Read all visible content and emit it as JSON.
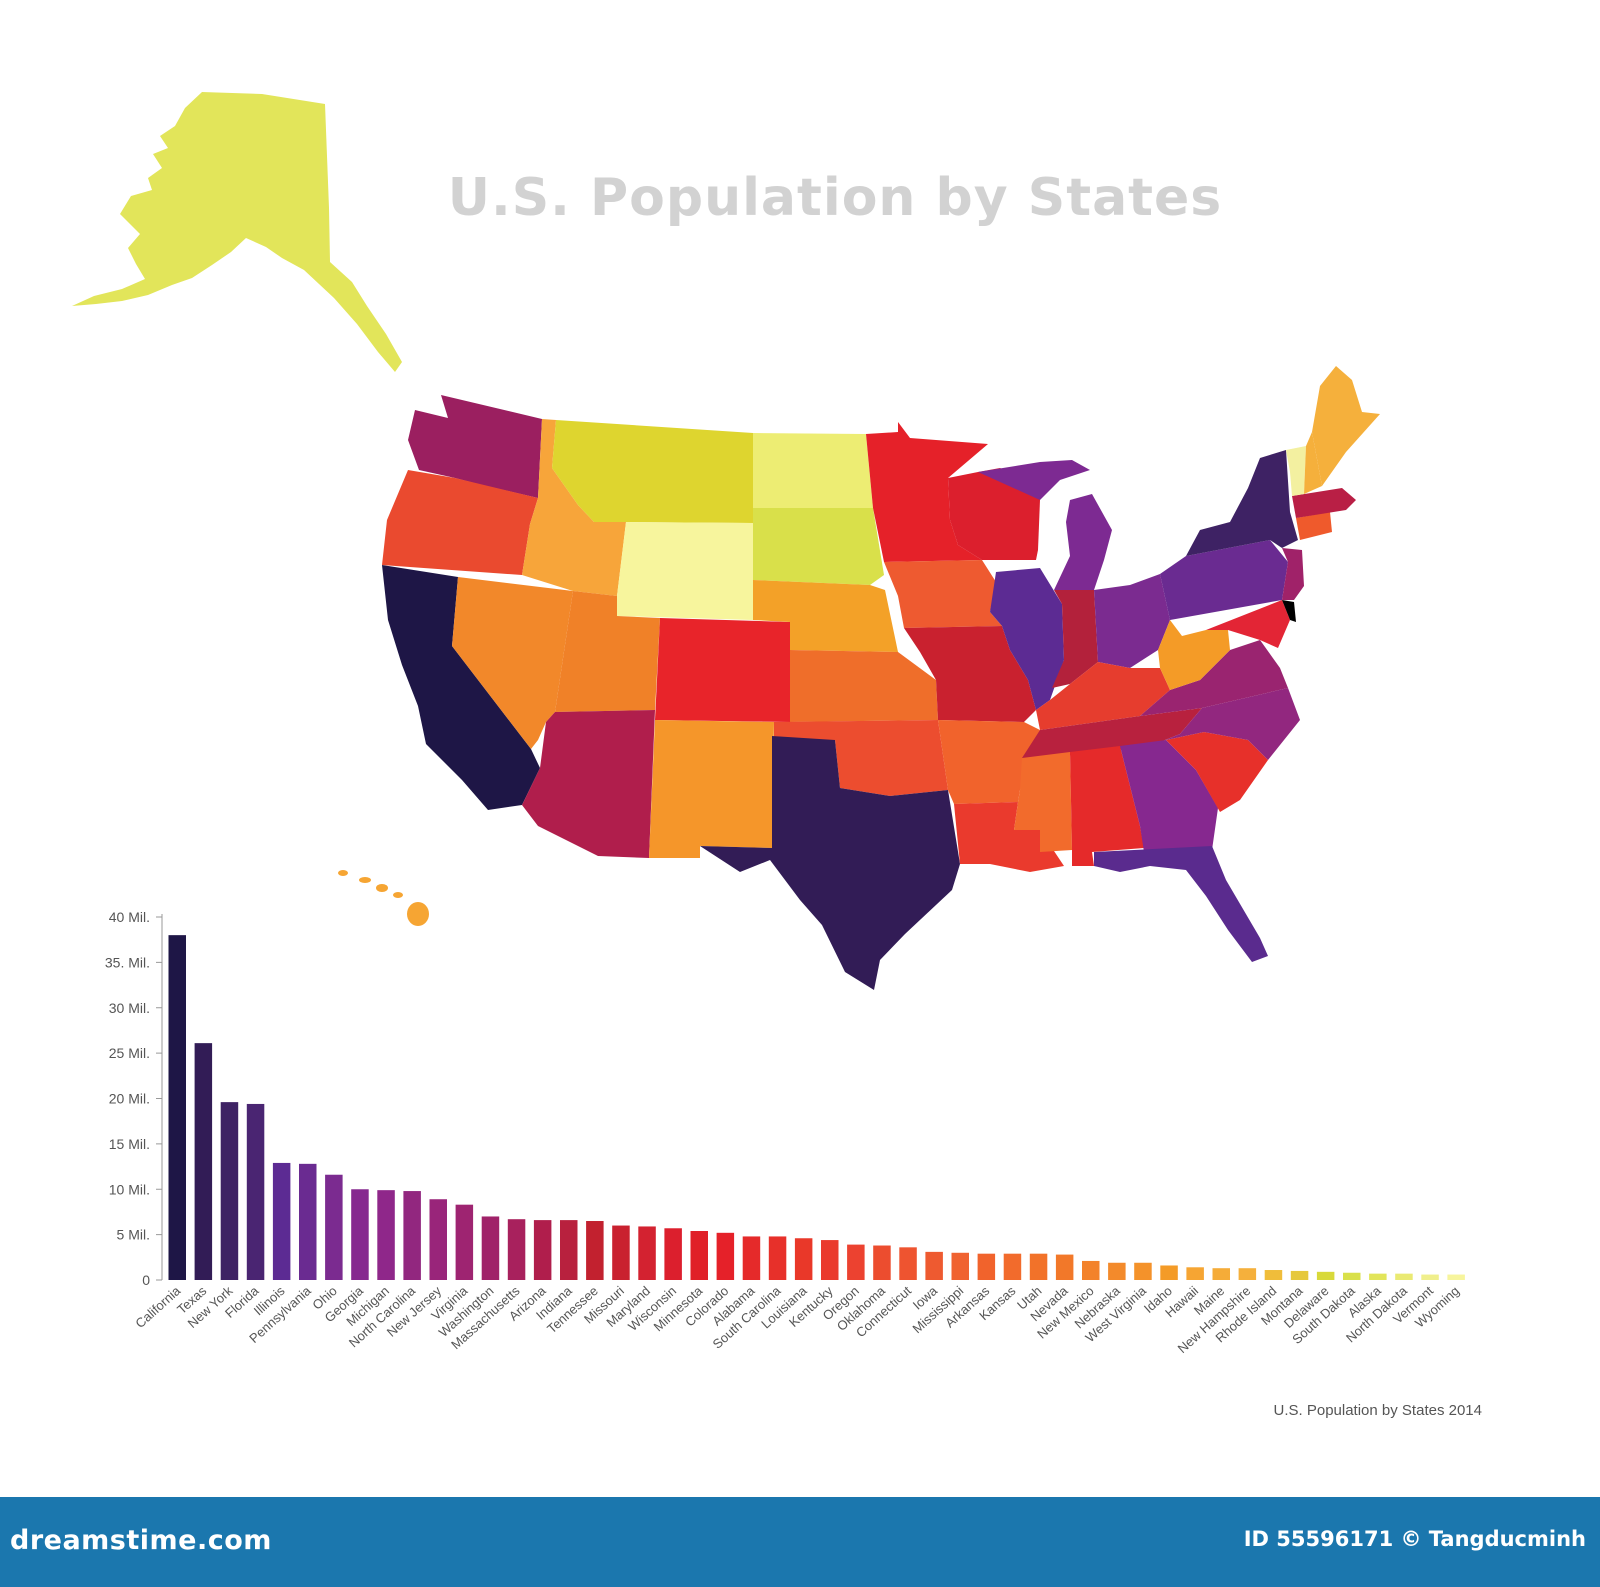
{
  "header": {
    "title": "U.S. Population by States"
  },
  "caption": "U.S. Population by States 2014",
  "footer": {
    "site": "dreamstime.com",
    "id_text": "ID 55596171 © Tangducminh"
  },
  "colors": {
    "background": "#ffffff",
    "title": "#d2d2d2",
    "footer_band": "#1b77ae",
    "palette_high": "#1e1646",
    "palette_mid": "#e8292a",
    "palette_low": "#f7f4a0"
  },
  "map": {
    "regions": [
      {
        "name": "Alaska",
        "color": "#e2e55a"
      },
      {
        "name": "Washington",
        "color": "#9b1f60"
      },
      {
        "name": "Oregon",
        "color": "#ea4a2f"
      },
      {
        "name": "California",
        "color": "#1e1646"
      },
      {
        "name": "Nevada",
        "color": "#f2882a"
      },
      {
        "name": "Idaho",
        "color": "#f7a53a"
      },
      {
        "name": "Montana",
        "color": "#ded52f"
      },
      {
        "name": "Wyoming",
        "color": "#f7f59d"
      },
      {
        "name": "Utah",
        "color": "#f08128"
      },
      {
        "name": "Arizona",
        "color": "#b01e4c"
      },
      {
        "name": "Colorado",
        "color": "#e8242a"
      },
      {
        "name": "New Mexico",
        "color": "#f5962a"
      },
      {
        "name": "North Dakota",
        "color": "#eded73"
      },
      {
        "name": "South Dakota",
        "color": "#d9e04a"
      },
      {
        "name": "Nebraska",
        "color": "#f3a128"
      },
      {
        "name": "Kansas",
        "color": "#ef6e2a"
      },
      {
        "name": "Oklahoma",
        "color": "#ec4d2f"
      },
      {
        "name": "Texas",
        "color": "#321c56"
      },
      {
        "name": "Minnesota",
        "color": "#e52129"
      },
      {
        "name": "Iowa",
        "color": "#ee5a30"
      },
      {
        "name": "Missouri",
        "color": "#c9212f"
      },
      {
        "name": "Arkansas",
        "color": "#f1632c"
      },
      {
        "name": "Louisiana",
        "color": "#ea3a2d"
      },
      {
        "name": "Wisconsin",
        "color": "#dc1f2d"
      },
      {
        "name": "Illinois",
        "color": "#5c2b93"
      },
      {
        "name": "Michigan",
        "color": "#7d2a92"
      },
      {
        "name": "Indiana",
        "color": "#b3213b"
      },
      {
        "name": "Ohio",
        "color": "#7b2b90"
      },
      {
        "name": "Kentucky",
        "color": "#e63d2e"
      },
      {
        "name": "Tennessee",
        "color": "#b8213e"
      },
      {
        "name": "Mississippi",
        "color": "#f26b2c"
      },
      {
        "name": "Alabama",
        "color": "#e52a2a"
      },
      {
        "name": "Georgia",
        "color": "#86288f"
      },
      {
        "name": "Florida",
        "color": "#5a2b8e"
      },
      {
        "name": "South Carolina",
        "color": "#e7302a"
      },
      {
        "name": "North Carolina",
        "color": "#92277f"
      },
      {
        "name": "Virginia",
        "color": "#9a2470"
      },
      {
        "name": "West Virginia",
        "color": "#f49b27"
      },
      {
        "name": "Pennsylvania",
        "color": "#6a2b91"
      },
      {
        "name": "New York",
        "color": "#3e2264"
      },
      {
        "name": "New Jersey",
        "color": "#a02269"
      },
      {
        "name": "Maryland",
        "color": "#e32535"
      },
      {
        "name": "Massachusetts",
        "color": "#b91f45"
      },
      {
        "name": "Connecticut",
        "color": "#ef5a2c"
      },
      {
        "name": "Vermont",
        "color": "#f3f0a0"
      },
      {
        "name": "New Hampshire",
        "color": "#f5b03c"
      },
      {
        "name": "Maine",
        "color": "#f5b03c"
      },
      {
        "name": "Hawaii",
        "color": "#f6a533"
      }
    ]
  },
  "chart_data": {
    "type": "bar",
    "title": "U.S. Population by States",
    "xlabel": "",
    "ylabel": "",
    "ylim": [
      0,
      40
    ],
    "yticks": [
      0,
      5,
      10,
      15,
      20,
      25,
      30,
      35,
      40
    ],
    "ytick_labels": [
      "0",
      "5 Mil.",
      "10 Mil.",
      "15 Mil.",
      "20 Mil.",
      "25 Mil.",
      "30 Mil.",
      "35. Mil.",
      "40 Mil."
    ],
    "grid": false,
    "legend": "none",
    "categories": [
      "California",
      "Texas",
      "New York",
      "Florida",
      "Illinois",
      "Pennsylvania",
      "Ohio",
      "Georgia",
      "Michigan",
      "North Carolina",
      "New Jersey",
      "Virginia",
      "Washington",
      "Massachusetts",
      "Arizona",
      "Indiana",
      "Tennessee",
      "Missouri",
      "Maryland",
      "Wisconsin",
      "Minnesota",
      "Colorado",
      "Alabama",
      "South Carolina",
      "Louisiana",
      "Kentucky",
      "Oregon",
      "Oklahoma",
      "Connecticut",
      "Iowa",
      "Mississippi",
      "Arkansas",
      "Kansas",
      "Utah",
      "Nevada",
      "New Mexico",
      "Nebraska",
      "West Virginia",
      "Idaho",
      "Hawaii",
      "Maine",
      "New Hampshire",
      "Rhode Island",
      "Montana",
      "Delaware",
      "South Dakota",
      "Alaska",
      "North Dakota",
      "Vermont",
      "Wyoming"
    ],
    "values": [
      38.0,
      26.1,
      19.6,
      19.4,
      12.9,
      12.8,
      11.6,
      10.0,
      9.9,
      9.8,
      8.9,
      8.3,
      7.0,
      6.7,
      6.6,
      6.6,
      6.5,
      6.0,
      5.9,
      5.7,
      5.4,
      5.2,
      4.8,
      4.8,
      4.6,
      4.4,
      3.9,
      3.8,
      3.6,
      3.1,
      3.0,
      2.9,
      2.9,
      2.9,
      2.8,
      2.1,
      1.9,
      1.9,
      1.6,
      1.4,
      1.3,
      1.3,
      1.1,
      1.0,
      0.9,
      0.8,
      0.7,
      0.7,
      0.6,
      0.6
    ],
    "colors": [
      "#1e1646",
      "#321c56",
      "#3e2264",
      "#4a2572",
      "#5c2b93",
      "#6a2b91",
      "#7b2b90",
      "#86288f",
      "#8f278a",
      "#92277f",
      "#99257a",
      "#9e2471",
      "#a02269",
      "#a8215d",
      "#b01e4c",
      "#b8213e",
      "#c2212f",
      "#c9212f",
      "#d32230",
      "#dc1f2d",
      "#e02028",
      "#e52129",
      "#e52a2a",
      "#e7302a",
      "#e93829",
      "#ea3a2d",
      "#ec4230",
      "#ec4d2f",
      "#ee5430",
      "#ee5a30",
      "#f06230",
      "#f1632c",
      "#f26b2c",
      "#f27229",
      "#f27829",
      "#f3822a",
      "#f38a2b",
      "#f4922a",
      "#f49b27",
      "#f6a533",
      "#f5ac38",
      "#f5b03c",
      "#f0bd3a",
      "#e6c83b",
      "#d8d93a",
      "#d9e04a",
      "#e2e55a",
      "#eaea73",
      "#f0ef8c",
      "#f7f59d"
    ]
  }
}
